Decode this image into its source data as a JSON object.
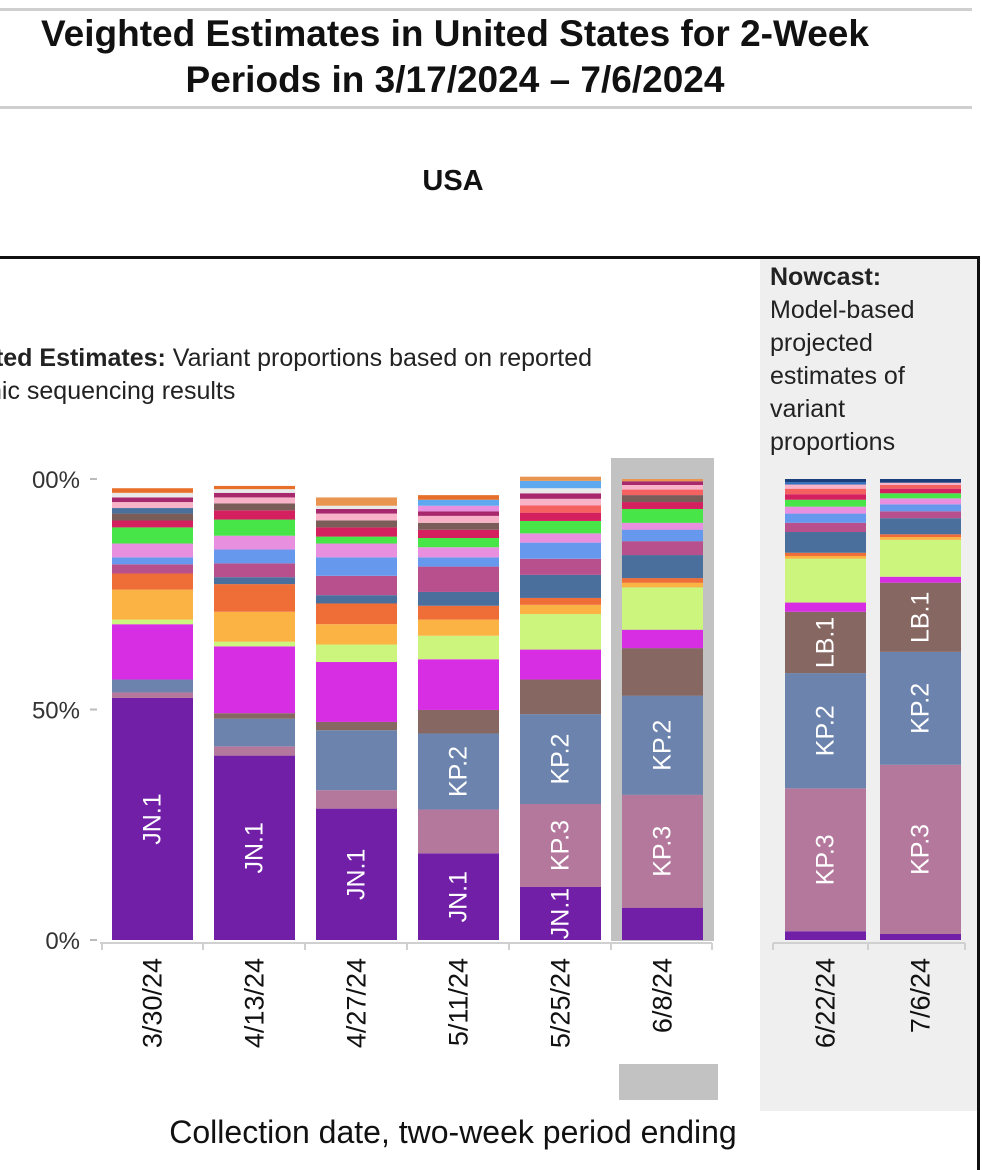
{
  "title_line1": "Veighted Estimates in United States for 2-Week",
  "title_line2": "Periods in 3/17/2024 – 7/6/2024",
  "subtitle": "USA",
  "weighted_annotation": {
    "bold": "ited Estimates:",
    "line1_rest": " Variant proportions based on reported",
    "line2": "nic sequencing results"
  },
  "nowcast_annotation": {
    "bold": "Nowcast:",
    "lines": [
      "Model-based",
      "projected",
      "estimates of",
      "variant",
      "proportions"
    ]
  },
  "x_axis_title": "Collection date, two-week period ending",
  "chart_data": {
    "type": "bar",
    "stacked": true,
    "ylim": [
      0,
      100
    ],
    "y_ticks": [
      "00%",
      "50%",
      "0%"
    ],
    "y_tick_values": [
      100,
      50,
      0
    ],
    "categories": [
      "3/30/24",
      "4/13/24",
      "4/27/24",
      "5/11/24",
      "5/25/24",
      "6/8/24",
      "6/22/24",
      "7/6/24"
    ],
    "highlighted_category": "6/8/24",
    "nowcast_categories": [
      "6/22/24",
      "7/6/24"
    ],
    "bars": [
      {
        "date": "3/30/24",
        "segments": [
          {
            "label": "JN.1",
            "value": 52.5,
            "color": "#721fa8"
          },
          {
            "label": "",
            "value": 1.2,
            "color": "#b4789c"
          },
          {
            "label": "",
            "value": 2.8,
            "color": "#6c84ad"
          },
          {
            "label": "",
            "value": 12,
            "color": "#d72ee3"
          },
          {
            "label": "",
            "value": 1,
            "color": "#ccf57e"
          },
          {
            "label": "",
            "value": 6.5,
            "color": "#fbb444"
          },
          {
            "label": "",
            "value": 3.5,
            "color": "#ef6e38"
          },
          {
            "label": "",
            "value": 2,
            "color": "#b8508e"
          },
          {
            "label": "",
            "value": 1.5,
            "color": "#6699ee"
          },
          {
            "label": "",
            "value": 3,
            "color": "#e98fe0"
          },
          {
            "label": "",
            "value": 3.5,
            "color": "#48e548"
          },
          {
            "label": "",
            "value": 1.5,
            "color": "#d52060"
          },
          {
            "label": "",
            "value": 1.5,
            "color": "#7a5c58"
          },
          {
            "label": "",
            "value": 1.2,
            "color": "#4a6f9c"
          },
          {
            "label": "",
            "value": 1.3,
            "color": "#f8b3c8"
          },
          {
            "label": "",
            "value": 1,
            "color": "#a8286e"
          },
          {
            "label": "",
            "value": 1,
            "color": "#e9e9e9"
          },
          {
            "label": "",
            "value": 1,
            "color": "#e86f2a"
          }
        ]
      },
      {
        "date": "4/13/24",
        "segments": [
          {
            "label": "JN.1",
            "value": 40,
            "color": "#721fa8"
          },
          {
            "label": "",
            "value": 2,
            "color": "#b4789c"
          },
          {
            "label": "",
            "value": 6,
            "color": "#6c84ad"
          },
          {
            "label": "",
            "value": 1.2,
            "color": "#866761"
          },
          {
            "label": "",
            "value": 14.5,
            "color": "#d72ee3"
          },
          {
            "label": "",
            "value": 1,
            "color": "#ccf57e"
          },
          {
            "label": "",
            "value": 6.5,
            "color": "#fbb444"
          },
          {
            "label": "",
            "value": 6,
            "color": "#ef6e38"
          },
          {
            "label": "",
            "value": 1.5,
            "color": "#4a6f9c"
          },
          {
            "label": "",
            "value": 3,
            "color": "#b8508e"
          },
          {
            "label": "",
            "value": 3,
            "color": "#6699ee"
          },
          {
            "label": "",
            "value": 3,
            "color": "#e98fe0"
          },
          {
            "label": "",
            "value": 3.5,
            "color": "#48e548"
          },
          {
            "label": "",
            "value": 2,
            "color": "#d52060"
          },
          {
            "label": "",
            "value": 1.5,
            "color": "#7a5c58"
          },
          {
            "label": "",
            "value": 1.3,
            "color": "#f8b3c8"
          },
          {
            "label": "",
            "value": 1,
            "color": "#a8286e"
          },
          {
            "label": "",
            "value": 0.8,
            "color": "#e9e9e9"
          },
          {
            "label": "",
            "value": 0.7,
            "color": "#e86f2a"
          }
        ]
      },
      {
        "date": "4/27/24",
        "segments": [
          {
            "label": "JN.1",
            "value": 28.5,
            "color": "#721fa8"
          },
          {
            "label": "",
            "value": 4,
            "color": "#b4789c"
          },
          {
            "label": "",
            "value": 13,
            "color": "#6c84ad"
          },
          {
            "label": "",
            "value": 1.8,
            "color": "#866761"
          },
          {
            "label": "",
            "value": 13,
            "color": "#d72ee3"
          },
          {
            "label": "",
            "value": 3.8,
            "color": "#ccf57e"
          },
          {
            "label": "",
            "value": 4.4,
            "color": "#fbb444"
          },
          {
            "label": "",
            "value": 4.5,
            "color": "#ef6e38"
          },
          {
            "label": "",
            "value": 1.8,
            "color": "#4a6f9c"
          },
          {
            "label": "",
            "value": 4.2,
            "color": "#b8508e"
          },
          {
            "label": "",
            "value": 4,
            "color": "#6699ee"
          },
          {
            "label": "",
            "value": 3,
            "color": "#e98fe0"
          },
          {
            "label": "",
            "value": 1.5,
            "color": "#48e548"
          },
          {
            "label": "",
            "value": 2,
            "color": "#d52060"
          },
          {
            "label": "",
            "value": 1.5,
            "color": "#7a5c58"
          },
          {
            "label": "",
            "value": 1.5,
            "color": "#f8b3c8"
          },
          {
            "label": "",
            "value": 1,
            "color": "#a8286e"
          },
          {
            "label": "",
            "value": 0.7,
            "color": "#e9e9e9"
          },
          {
            "label": "",
            "value": 1.8,
            "color": "#e9954f"
          }
        ]
      },
      {
        "date": "5/11/24",
        "segments": [
          {
            "label": "JN.1",
            "value": 18.8,
            "color": "#721fa8"
          },
          {
            "label": "",
            "value": 9.5,
            "color": "#b4789c"
          },
          {
            "label": "KP.2",
            "value": 16.5,
            "color": "#6c84ad"
          },
          {
            "label": "",
            "value": 5.1,
            "color": "#866761"
          },
          {
            "label": "",
            "value": 11,
            "color": "#d72ee3"
          },
          {
            "label": "",
            "value": 5.1,
            "color": "#ccf57e"
          },
          {
            "label": "",
            "value": 3.5,
            "color": "#fbb444"
          },
          {
            "label": "",
            "value": 3,
            "color": "#ef6e38"
          },
          {
            "label": "",
            "value": 3,
            "color": "#4a6f9c"
          },
          {
            "label": "",
            "value": 5.5,
            "color": "#b8508e"
          },
          {
            "label": "",
            "value": 2,
            "color": "#6699ee"
          },
          {
            "label": "",
            "value": 2.2,
            "color": "#e98fe0"
          },
          {
            "label": "",
            "value": 2,
            "color": "#48e548"
          },
          {
            "label": "",
            "value": 1.8,
            "color": "#d52060"
          },
          {
            "label": "",
            "value": 1.5,
            "color": "#7a5c58"
          },
          {
            "label": "",
            "value": 1.5,
            "color": "#f8b3c8"
          },
          {
            "label": "",
            "value": 1,
            "color": "#a8286e"
          },
          {
            "label": "",
            "value": 1.2,
            "color": "#e98fe0"
          },
          {
            "label": "",
            "value": 1.3,
            "color": "#5da8ef"
          },
          {
            "label": "",
            "value": 1,
            "color": "#e86f2a"
          }
        ]
      },
      {
        "date": "5/25/24",
        "segments": [
          {
            "label": "JN.1",
            "value": 11.5,
            "color": "#721fa8"
          },
          {
            "label": "KP.3",
            "value": 18,
            "color": "#b4789c"
          },
          {
            "label": "KP.2",
            "value": 19.5,
            "color": "#6c84ad"
          },
          {
            "label": "",
            "value": 7.5,
            "color": "#866761"
          },
          {
            "label": "",
            "value": 6.5,
            "color": "#d72ee3"
          },
          {
            "label": "",
            "value": 7.7,
            "color": "#ccf57e"
          },
          {
            "label": "",
            "value": 2,
            "color": "#fbb444"
          },
          {
            "label": "",
            "value": 1.5,
            "color": "#ef6e38"
          },
          {
            "label": "",
            "value": 5,
            "color": "#4a6f9c"
          },
          {
            "label": "",
            "value": 3.5,
            "color": "#b8508e"
          },
          {
            "label": "",
            "value": 3.5,
            "color": "#6699ee"
          },
          {
            "label": "",
            "value": 2,
            "color": "#e98fe0"
          },
          {
            "label": "",
            "value": 2.7,
            "color": "#48e548"
          },
          {
            "label": "",
            "value": 1.8,
            "color": "#d52060"
          },
          {
            "label": "",
            "value": 1.6,
            "color": "#f56060"
          },
          {
            "label": "",
            "value": 1.4,
            "color": "#f8b3c8"
          },
          {
            "label": "",
            "value": 1.2,
            "color": "#a8286e"
          },
          {
            "label": "",
            "value": 1.1,
            "color": "#e9e9e9"
          },
          {
            "label": "",
            "value": 1.6,
            "color": "#5da8ef"
          },
          {
            "label": "",
            "value": 0.9,
            "color": "#e9954f"
          }
        ]
      },
      {
        "date": "6/8/24",
        "segments": [
          {
            "label": "",
            "value": 7,
            "color": "#721fa8"
          },
          {
            "label": "KP.3",
            "value": 24.5,
            "color": "#b4789c"
          },
          {
            "label": "KP.2",
            "value": 21.5,
            "color": "#6c84ad"
          },
          {
            "label": "",
            "value": 10.3,
            "color": "#866761"
          },
          {
            "label": "",
            "value": 4,
            "color": "#d72ee3"
          },
          {
            "label": "",
            "value": 9.2,
            "color": "#ccf57e"
          },
          {
            "label": "",
            "value": 1,
            "color": "#fbb444"
          },
          {
            "label": "",
            "value": 1,
            "color": "#ef6e38"
          },
          {
            "label": "",
            "value": 5,
            "color": "#4a6f9c"
          },
          {
            "label": "",
            "value": 3,
            "color": "#b8508e"
          },
          {
            "label": "",
            "value": 2.5,
            "color": "#6699ee"
          },
          {
            "label": "",
            "value": 1.5,
            "color": "#e98fe0"
          },
          {
            "label": "",
            "value": 3,
            "color": "#48e548"
          },
          {
            "label": "",
            "value": 1.5,
            "color": "#d52060"
          },
          {
            "label": "",
            "value": 1.5,
            "color": "#7a5c58"
          },
          {
            "label": "",
            "value": 1.2,
            "color": "#f56060"
          },
          {
            "label": "",
            "value": 1,
            "color": "#f8b3c8"
          },
          {
            "label": "",
            "value": 0.8,
            "color": "#a8286e"
          },
          {
            "label": "",
            "value": 0.5,
            "color": "#e9954f"
          }
        ]
      },
      {
        "date": "6/22/24",
        "segments": [
          {
            "label": "",
            "value": 1.9,
            "color": "#721fa8"
          },
          {
            "label": "KP.3",
            "value": 31,
            "color": "#b4789c"
          },
          {
            "label": "KP.2",
            "value": 25,
            "color": "#6c84ad"
          },
          {
            "label": "LB.1",
            "value": 13.3,
            "color": "#866761"
          },
          {
            "label": "",
            "value": 2,
            "color": "#d72ee3"
          },
          {
            "label": "",
            "value": 9.5,
            "color": "#ccf57e"
          },
          {
            "label": "",
            "value": 0.6,
            "color": "#fbb444"
          },
          {
            "label": "",
            "value": 0.7,
            "color": "#ef6e38"
          },
          {
            "label": "",
            "value": 4.5,
            "color": "#4a6f9c"
          },
          {
            "label": "",
            "value": 2,
            "color": "#b8508e"
          },
          {
            "label": "",
            "value": 2,
            "color": "#6699ee"
          },
          {
            "label": "",
            "value": 1.5,
            "color": "#e98fe0"
          },
          {
            "label": "",
            "value": 1.5,
            "color": "#48e548"
          },
          {
            "label": "",
            "value": 1.2,
            "color": "#d52060"
          },
          {
            "label": "",
            "value": 1.2,
            "color": "#f56060"
          },
          {
            "label": "",
            "value": 0.9,
            "color": "#f8b3c8"
          },
          {
            "label": "",
            "value": 0.5,
            "color": "#2f6fbf"
          },
          {
            "label": "",
            "value": 0.7,
            "color": "#1a3e7c"
          }
        ]
      },
      {
        "date": "7/6/24",
        "segments": [
          {
            "label": "",
            "value": 1.3,
            "color": "#721fa8"
          },
          {
            "label": "KP.3",
            "value": 36.7,
            "color": "#b4789c"
          },
          {
            "label": "KP.2",
            "value": 24.5,
            "color": "#6c84ad"
          },
          {
            "label": "LB.1",
            "value": 15,
            "color": "#866761"
          },
          {
            "label": "",
            "value": 1.3,
            "color": "#d72ee3"
          },
          {
            "label": "",
            "value": 8,
            "color": "#ccf57e"
          },
          {
            "label": "",
            "value": 0.6,
            "color": "#fbb444"
          },
          {
            "label": "",
            "value": 0.6,
            "color": "#ef6e38"
          },
          {
            "label": "",
            "value": 3.5,
            "color": "#4a6f9c"
          },
          {
            "label": "",
            "value": 1.5,
            "color": "#b8508e"
          },
          {
            "label": "",
            "value": 1.5,
            "color": "#6699ee"
          },
          {
            "label": "",
            "value": 1.3,
            "color": "#e98fe0"
          },
          {
            "label": "",
            "value": 1.1,
            "color": "#48e548"
          },
          {
            "label": "",
            "value": 1,
            "color": "#d52060"
          },
          {
            "label": "",
            "value": 0.8,
            "color": "#f56060"
          },
          {
            "label": "",
            "value": 0.5,
            "color": "#f8b3c8"
          },
          {
            "label": "",
            "value": 0.8,
            "color": "#1a3e7c"
          }
        ]
      }
    ]
  }
}
